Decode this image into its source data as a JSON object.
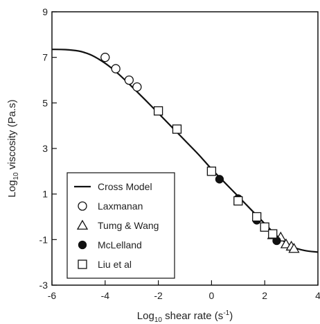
{
  "chart_data": {
    "type": "scatter",
    "xlabel": {
      "main": "Log",
      "sub": "10",
      "rest": " shear rate (s",
      "sup": "-1",
      "close": ")"
    },
    "ylabel": {
      "main": "Log",
      "sub": "10",
      "rest": " viscosity (Pa.s)"
    },
    "xlim": [
      -6,
      4
    ],
    "ylim": [
      -3,
      9
    ],
    "xticks": [
      -6,
      -4,
      -2,
      0,
      2,
      4
    ],
    "yticks": [
      -3,
      -1,
      1,
      3,
      5,
      7,
      9
    ],
    "grid": false,
    "legend_position": "bottom-left",
    "line": {
      "name": "Cross Model",
      "x": [
        -6,
        -5.5,
        -5,
        -4.75,
        -4.5,
        -4.25,
        -4,
        -3.75,
        -3.5,
        -3.25,
        -3,
        -2.75,
        -2.5,
        -2,
        -1.5,
        -1,
        -0.5,
        0,
        0.5,
        1,
        1.5,
        1.75,
        2,
        2.25,
        2.5,
        2.75,
        3,
        3.5,
        4
      ],
      "y": [
        7.35,
        7.34,
        7.28,
        7.2,
        7.09,
        6.93,
        6.74,
        6.52,
        6.27,
        6.0,
        5.72,
        5.43,
        5.14,
        4.55,
        3.95,
        3.35,
        2.75,
        2.1,
        1.5,
        0.9,
        0.3,
        0.0,
        -0.3,
        -0.6,
        -0.88,
        -1.1,
        -1.3,
        -1.48,
        -1.55
      ]
    },
    "series": [
      {
        "name": "Laxmanan",
        "marker": "circle-open",
        "x": [
          -4.0,
          -3.6,
          -3.1,
          -2.8
        ],
        "y": [
          7.0,
          6.5,
          6.0,
          5.7
        ]
      },
      {
        "name": "Tumg & Wang",
        "marker": "triangle-open",
        "x": [
          2.3,
          2.6,
          2.8,
          3.0,
          3.1
        ],
        "y": [
          -0.8,
          -0.9,
          -1.2,
          -1.3,
          -1.4
        ]
      },
      {
        "name": "McLelland",
        "marker": "circle-filled",
        "x": [
          0.3,
          1.0,
          1.7,
          2.45
        ],
        "y": [
          1.65,
          0.8,
          -0.15,
          -1.05
        ]
      },
      {
        "name": "Liu et al",
        "marker": "square-open",
        "x": [
          -2.0,
          -1.3,
          0.0,
          1.0,
          1.7,
          2.0,
          2.3
        ],
        "y": [
          4.65,
          3.85,
          2.0,
          0.7,
          0.0,
          -0.45,
          -0.75
        ]
      }
    ]
  }
}
